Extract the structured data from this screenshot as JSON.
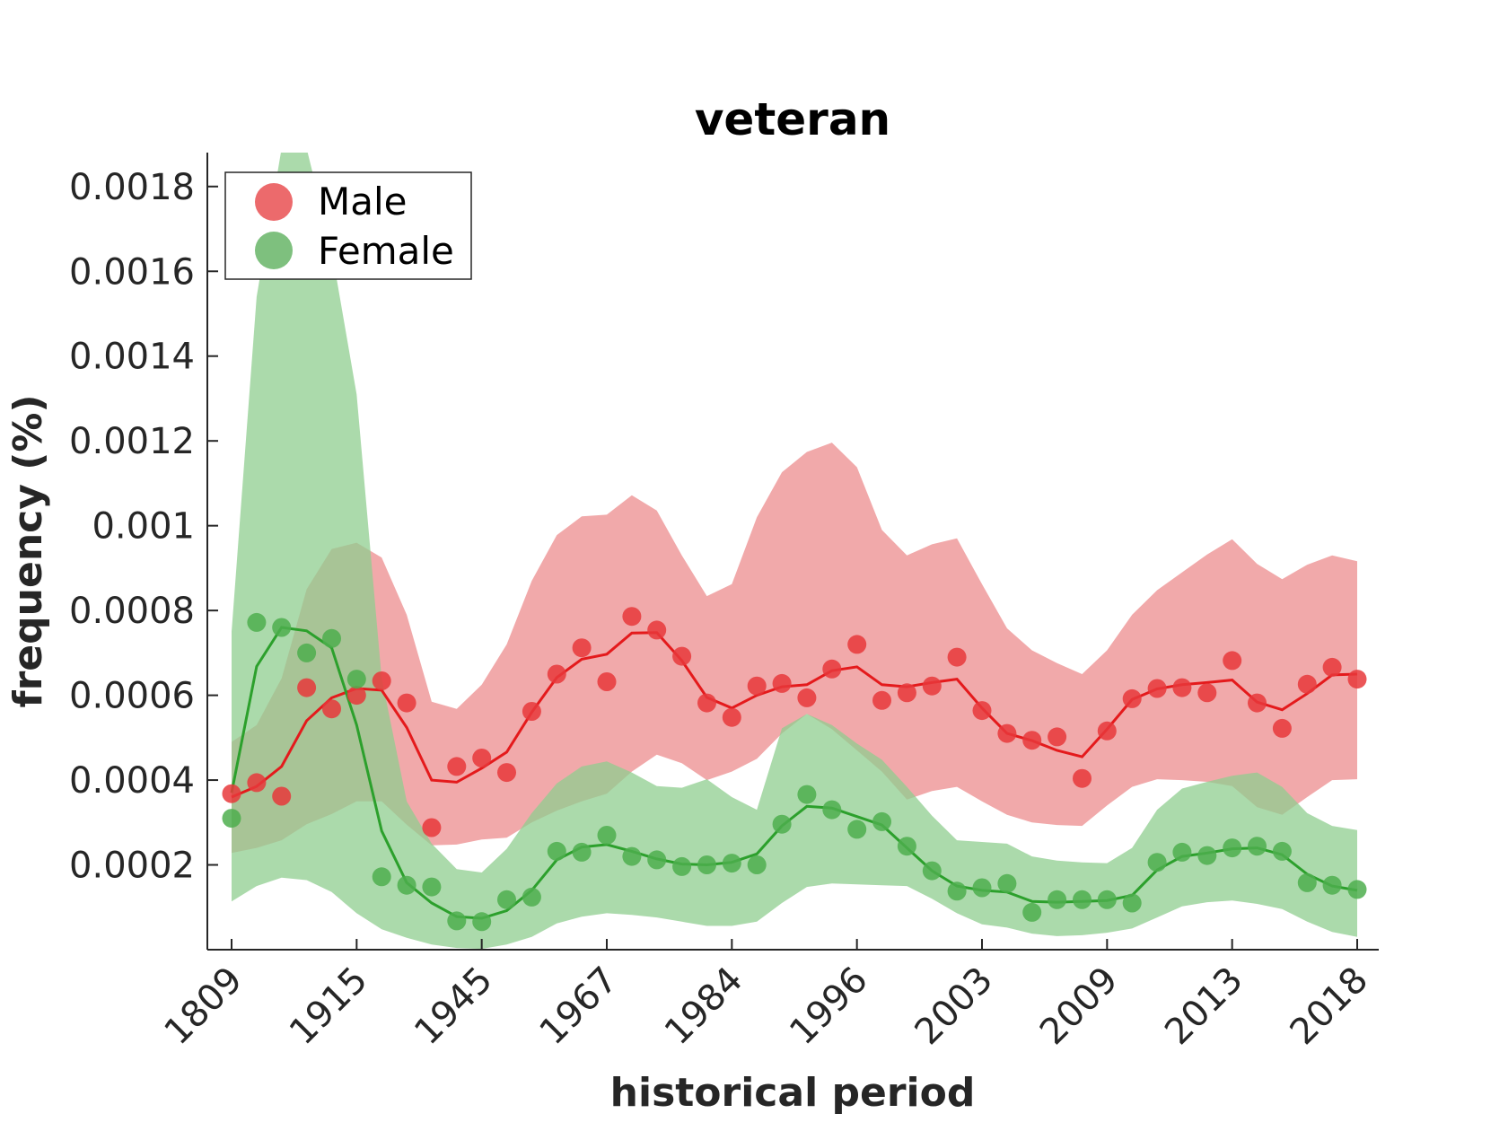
{
  "chart_data": {
    "type": "line",
    "title": "veteran",
    "xlabel": "historical period",
    "ylabel": "frequency (%)",
    "ylim": [
      0,
      0.00188
    ],
    "y_ticks": [
      0.0002,
      0.0004,
      0.0006,
      0.0008,
      0.001,
      0.0012,
      0.0014,
      0.0016,
      0.0018
    ],
    "y_tick_labels": [
      "0.0002",
      "0.0004",
      "0.0006",
      "0.0008",
      "0.001",
      "0.0012",
      "0.0014",
      "0.0016",
      "0.0018"
    ],
    "x_tick_labels": [
      "1809",
      "1915",
      "1945",
      "1967",
      "1984",
      "1996",
      "2003",
      "2009",
      "2013",
      "2018"
    ],
    "x_points": 46,
    "legend_position": "top-left",
    "grid": false,
    "series": [
      {
        "name": "Male",
        "color": "#e41a1c",
        "points": [
          0.000368,
          0.000394,
          0.000362,
          0.000618,
          0.000568,
          0.0006,
          0.000634,
          0.000582,
          0.000288,
          0.000432,
          0.000452,
          0.000418,
          0.000562,
          0.00065,
          0.000712,
          0.000632,
          0.000786,
          0.000754,
          0.000692,
          0.000582,
          0.000548,
          0.000622,
          0.000628,
          0.000594,
          0.000662,
          0.00072,
          0.000588,
          0.000606,
          0.000622,
          0.00069,
          0.000564,
          0.00051,
          0.000494,
          0.000502,
          0.000404,
          0.000516,
          0.000592,
          0.000616,
          0.000618,
          0.000606,
          0.000682,
          0.000582,
          0.000522,
          0.000626,
          0.000666,
          0.000638
        ],
        "smooth": [
          0.00036,
          0.000385,
          0.000432,
          0.00054,
          0.000594,
          0.000616,
          0.000612,
          0.000524,
          0.0004,
          0.000395,
          0.000428,
          0.000466,
          0.00056,
          0.000642,
          0.000685,
          0.000697,
          0.000747,
          0.000748,
          0.000682,
          0.000595,
          0.00057,
          0.0006,
          0.00062,
          0.000625,
          0.000658,
          0.000667,
          0.000625,
          0.00062,
          0.00063,
          0.000638,
          0.00057,
          0.00051,
          0.000493,
          0.00047,
          0.000455,
          0.00052,
          0.00059,
          0.000615,
          0.000625,
          0.00063,
          0.000636,
          0.000584,
          0.000566,
          0.000604,
          0.000648,
          0.00065
        ],
        "upper": [
          0.00049,
          0.00053,
          0.00064,
          0.00085,
          0.000945,
          0.00096,
          0.000925,
          0.00079,
          0.000585,
          0.000568,
          0.000625,
          0.00072,
          0.00087,
          0.000978,
          0.001022,
          0.001026,
          0.001072,
          0.001036,
          0.00093,
          0.000834,
          0.000862,
          0.00102,
          0.001126,
          0.001174,
          0.001196,
          0.001138,
          0.00099,
          0.00093,
          0.000956,
          0.00097,
          0.000862,
          0.000758,
          0.000706,
          0.000676,
          0.00065,
          0.000706,
          0.00079,
          0.000848,
          0.00089,
          0.000932,
          0.000968,
          0.00091,
          0.000874,
          0.000908,
          0.00093,
          0.000916
        ],
        "lower": [
          0.000228,
          0.00024,
          0.000258,
          0.000296,
          0.00032,
          0.00035,
          0.00035,
          0.000295,
          0.000246,
          0.000248,
          0.00026,
          0.000264,
          0.0003,
          0.000328,
          0.00035,
          0.000368,
          0.00042,
          0.00046,
          0.00044,
          0.0004,
          0.00042,
          0.00045,
          0.00051,
          0.000556,
          0.00052,
          0.00047,
          0.00042,
          0.000354,
          0.000374,
          0.000384,
          0.00035,
          0.000318,
          0.0003,
          0.000294,
          0.000292,
          0.00034,
          0.000384,
          0.000402,
          0.0004,
          0.000396,
          0.000386,
          0.000336,
          0.000318,
          0.00036,
          0.0004,
          0.000402
        ]
      },
      {
        "name": "Female",
        "color": "#2ca02c",
        "points": [
          0.00031,
          0.000772,
          0.00076,
          0.0007,
          0.000734,
          0.000638,
          0.000172,
          0.000152,
          0.000148,
          6.8e-05,
          6.6e-05,
          0.000118,
          0.000124,
          0.000232,
          0.00023,
          0.00027,
          0.00022,
          0.000212,
          0.000196,
          0.0002,
          0.000204,
          0.0002,
          0.000296,
          0.000366,
          0.00033,
          0.000284,
          0.000302,
          0.000244,
          0.000186,
          0.000138,
          0.000146,
          0.000156,
          8.8e-05,
          0.000118,
          0.000118,
          0.000118,
          0.00011,
          0.000206,
          0.00023,
          0.000222,
          0.00024,
          0.000244,
          0.000232,
          0.000158,
          0.000152,
          0.000142
        ],
        "smooth": [
          0.00037,
          0.000668,
          0.00076,
          0.000752,
          0.000712,
          0.00053,
          0.00028,
          0.000158,
          0.00011,
          7.8e-05,
          7.4e-05,
          9.2e-05,
          0.00014,
          0.000212,
          0.000242,
          0.000248,
          0.000232,
          0.000214,
          0.000202,
          0.0002,
          0.000206,
          0.000226,
          0.000292,
          0.000338,
          0.000334,
          0.000314,
          0.000294,
          0.00024,
          0.000186,
          0.00015,
          0.00014,
          0.000136,
          0.000114,
          0.000112,
          0.000114,
          0.000116,
          0.000128,
          0.000188,
          0.00022,
          0.000228,
          0.000238,
          0.00024,
          0.000224,
          0.000178,
          0.00015,
          0.00014
        ],
        "upper": [
          0.00075,
          0.00154,
          0.00189,
          0.00189,
          0.00165,
          0.00131,
          0.00064,
          0.00035,
          0.00025,
          0.00019,
          0.000182,
          0.000238,
          0.000322,
          0.000392,
          0.000432,
          0.000444,
          0.000418,
          0.000386,
          0.000382,
          0.000402,
          0.00036,
          0.00033,
          0.000522,
          0.000556,
          0.00053,
          0.000486,
          0.000448,
          0.000384,
          0.000316,
          0.000258,
          0.000254,
          0.00025,
          0.00022,
          0.00021,
          0.000206,
          0.000204,
          0.00024,
          0.00033,
          0.00038,
          0.000396,
          0.00041,
          0.000418,
          0.000384,
          0.000322,
          0.000292,
          0.000282
        ],
        "lower": [
          0.000114,
          0.00015,
          0.00017,
          0.000164,
          0.000136,
          8.6e-05,
          4.8e-05,
          2.8e-05,
          1.2e-05,
          4e-06,
          2e-06,
          1.2e-05,
          3e-05,
          6.2e-05,
          7.8e-05,
          8.6e-05,
          8.2e-05,
          7.6e-05,
          6.6e-05,
          5.6e-05,
          5.6e-05,
          6.6e-05,
          0.00011,
          0.000148,
          0.000156,
          0.000154,
          0.000152,
          0.00015,
          0.00012,
          8.6e-05,
          6e-05,
          5.2e-05,
          3.8e-05,
          3.2e-05,
          3.4e-05,
          4e-05,
          5e-05,
          7.6e-05,
          0.000102,
          0.000112,
          0.000116,
          0.000108,
          9.6e-05,
          6.6e-05,
          4.2e-05,
          3e-05
        ]
      }
    ]
  },
  "legend": {
    "entries": [
      {
        "label": "Male",
        "color": "#ec6a6c"
      },
      {
        "label": "Female",
        "color": "#7ec07e"
      }
    ]
  },
  "colors": {
    "male_band": "#ec8c8e",
    "female_band": "#8fce8f",
    "male_marker": "#e8383b",
    "female_marker": "#4eae4e"
  }
}
